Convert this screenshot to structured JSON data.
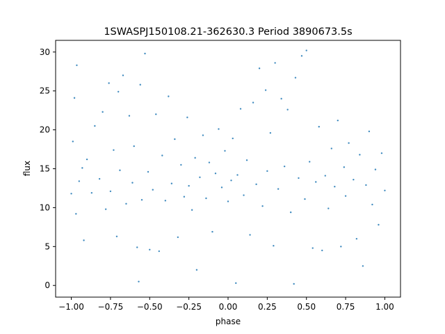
{
  "chart_data": {
    "type": "scatter",
    "title": "1SWASPJ150108.21-362630.3 Period 3890673.5s",
    "xlabel": "phase",
    "ylabel": "flux",
    "xlim": [
      -1.1,
      1.1
    ],
    "ylim": [
      -1.5,
      31.5
    ],
    "xticks": [
      -1.0,
      -0.75,
      -0.5,
      -0.25,
      0.0,
      0.25,
      0.5,
      0.75,
      1.0
    ],
    "xtick_labels": [
      "−1.00",
      "−0.75",
      "−0.50",
      "−0.25",
      "0.00",
      "0.25",
      "0.50",
      "0.75",
      "1.00"
    ],
    "yticks": [
      0,
      5,
      10,
      15,
      20,
      25,
      30
    ],
    "ytick_labels": [
      "0",
      "5",
      "10",
      "15",
      "20",
      "25",
      "30"
    ],
    "grid": false,
    "legend": "none",
    "point_color": "#1f77b4",
    "series": [
      {
        "points": [
          [
            -1.0,
            11.8
          ],
          [
            -0.99,
            18.5
          ],
          [
            -0.98,
            24.1
          ],
          [
            -0.97,
            9.2
          ],
          [
            -0.965,
            28.3
          ],
          [
            -0.95,
            13.4
          ],
          [
            -0.93,
            15.1
          ],
          [
            -0.92,
            5.8
          ],
          [
            -0.9,
            16.2
          ],
          [
            -0.87,
            11.9
          ],
          [
            -0.85,
            20.5
          ],
          [
            -0.82,
            13.7
          ],
          [
            -0.8,
            22.3
          ],
          [
            -0.78,
            9.8
          ],
          [
            -0.76,
            26.0
          ],
          [
            -0.75,
            12.1
          ],
          [
            -0.73,
            17.4
          ],
          [
            -0.71,
            6.3
          ],
          [
            -0.7,
            24.9
          ],
          [
            -0.69,
            14.8
          ],
          [
            -0.67,
            27.0
          ],
          [
            -0.65,
            10.5
          ],
          [
            -0.63,
            21.8
          ],
          [
            -0.61,
            13.2
          ],
          [
            -0.6,
            17.9
          ],
          [
            -0.58,
            4.9
          ],
          [
            -0.57,
            0.5
          ],
          [
            -0.56,
            25.8
          ],
          [
            -0.55,
            11.0
          ],
          [
            -0.53,
            29.8
          ],
          [
            -0.51,
            14.6
          ],
          [
            -0.5,
            4.6
          ],
          [
            -0.48,
            12.3
          ],
          [
            -0.46,
            22.0
          ],
          [
            -0.44,
            4.4
          ],
          [
            -0.42,
            16.7
          ],
          [
            -0.4,
            10.9
          ],
          [
            -0.38,
            24.3
          ],
          [
            -0.36,
            13.1
          ],
          [
            -0.34,
            18.8
          ],
          [
            -0.32,
            6.2
          ],
          [
            -0.3,
            15.5
          ],
          [
            -0.28,
            11.4
          ],
          [
            -0.26,
            21.6
          ],
          [
            -0.25,
            12.8
          ],
          [
            -0.23,
            9.7
          ],
          [
            -0.21,
            16.4
          ],
          [
            -0.2,
            2.0
          ],
          [
            -0.18,
            13.9
          ],
          [
            -0.16,
            19.3
          ],
          [
            -0.14,
            11.2
          ],
          [
            -0.12,
            15.8
          ],
          [
            -0.1,
            6.9
          ],
          [
            -0.08,
            14.4
          ],
          [
            -0.06,
            20.1
          ],
          [
            -0.04,
            12.6
          ],
          [
            -0.02,
            17.3
          ],
          [
            0.0,
            10.8
          ],
          [
            0.02,
            13.5
          ],
          [
            0.03,
            18.9
          ],
          [
            0.05,
            0.3
          ],
          [
            0.06,
            14.2
          ],
          [
            0.08,
            22.7
          ],
          [
            0.1,
            11.6
          ],
          [
            0.12,
            16.1
          ],
          [
            0.14,
            6.5
          ],
          [
            0.16,
            23.5
          ],
          [
            0.18,
            13.0
          ],
          [
            0.2,
            27.9
          ],
          [
            0.22,
            10.2
          ],
          [
            0.24,
            25.1
          ],
          [
            0.25,
            14.7
          ],
          [
            0.27,
            19.6
          ],
          [
            0.29,
            5.1
          ],
          [
            0.3,
            28.6
          ],
          [
            0.32,
            12.4
          ],
          [
            0.34,
            24.0
          ],
          [
            0.36,
            15.3
          ],
          [
            0.38,
            22.6
          ],
          [
            0.4,
            9.4
          ],
          [
            0.42,
            0.2
          ],
          [
            0.43,
            26.7
          ],
          [
            0.45,
            13.8
          ],
          [
            0.47,
            29.5
          ],
          [
            0.49,
            11.1
          ],
          [
            0.5,
            30.2
          ],
          [
            0.52,
            15.9
          ],
          [
            0.54,
            4.8
          ],
          [
            0.56,
            13.3
          ],
          [
            0.58,
            20.4
          ],
          [
            0.6,
            4.5
          ],
          [
            0.62,
            14.1
          ],
          [
            0.64,
            9.9
          ],
          [
            0.66,
            17.6
          ],
          [
            0.68,
            12.7
          ],
          [
            0.7,
            21.2
          ],
          [
            0.72,
            5.0
          ],
          [
            0.74,
            15.2
          ],
          [
            0.75,
            11.5
          ],
          [
            0.77,
            18.3
          ],
          [
            0.8,
            13.6
          ],
          [
            0.82,
            6.0
          ],
          [
            0.84,
            16.8
          ],
          [
            0.86,
            2.5
          ],
          [
            0.88,
            12.9
          ],
          [
            0.9,
            19.8
          ],
          [
            0.92,
            10.4
          ],
          [
            0.94,
            14.9
          ],
          [
            0.96,
            7.8
          ],
          [
            0.98,
            17.0
          ],
          [
            1.0,
            12.2
          ]
        ]
      }
    ]
  }
}
